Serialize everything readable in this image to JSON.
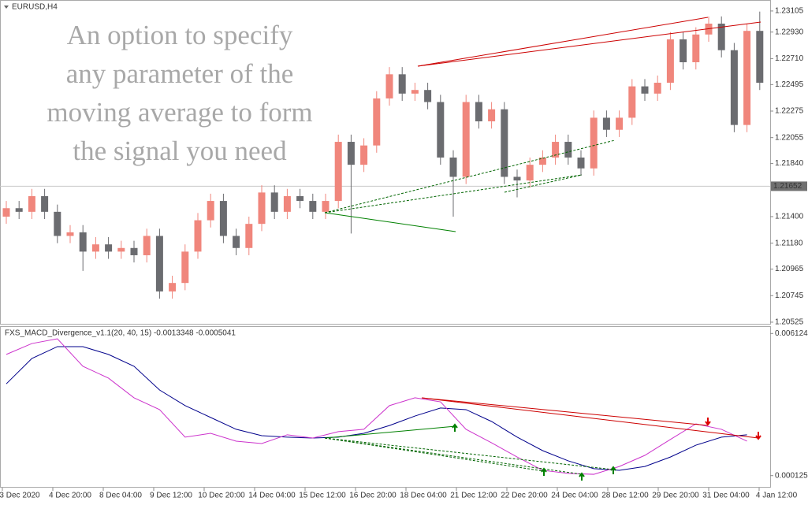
{
  "window": {
    "symbol": "EURUSD,H4"
  },
  "overlay_text": [
    "An option to specify",
    "any parameter of the",
    "moving average to form",
    "the signal you need"
  ],
  "price_chart": {
    "type": "candlestick",
    "open": [
      1.214,
      1.2147,
      1.2144,
      1.2157,
      1.2144,
      1.2124,
      1.2127,
      1.2111,
      1.2117,
      1.2111,
      1.2114,
      1.2108,
      1.2124,
      1.2078,
      1.2085,
      1.2111,
      1.2137,
      1.2153,
      1.2124,
      1.2114,
      1.2134,
      1.216,
      1.2144,
      1.2157,
      1.2153,
      1.2144,
      1.2153,
      1.2202,
      1.2183,
      1.2199,
      1.2238,
      1.2258,
      1.2242,
      1.2245,
      1.2235,
      1.2189,
      1.2173,
      1.2235,
      1.2219,
      1.2229,
      1.2173,
      1.217,
      1.2183,
      1.2189,
      1.2202,
      1.2189,
      1.218,
      1.2222,
      1.2212,
      1.2222,
      1.2248,
      1.2242,
      1.2251,
      1.2287,
      1.2268,
      1.2291,
      1.23,
      1.2278,
      1.2216,
      1.2294
    ],
    "high": [
      1.2153,
      1.2153,
      1.2163,
      1.2163,
      1.215,
      1.2133,
      1.2133,
      1.2123,
      1.2123,
      1.212,
      1.212,
      1.213,
      1.213,
      1.2091,
      1.2117,
      1.2143,
      1.2159,
      1.2159,
      1.213,
      1.214,
      1.2166,
      1.2166,
      1.2163,
      1.2163,
      1.2159,
      1.2159,
      1.2208,
      1.2208,
      1.2205,
      1.2244,
      1.2264,
      1.2264,
      1.2251,
      1.2251,
      1.2241,
      1.2195,
      1.2241,
      1.2241,
      1.2235,
      1.2235,
      1.2179,
      1.2189,
      1.2195,
      1.2208,
      1.2208,
      1.2195,
      1.2228,
      1.2228,
      1.2228,
      1.2254,
      1.2254,
      1.2257,
      1.2293,
      1.2293,
      1.2297,
      1.2306,
      1.2306,
      1.2284,
      1.23,
      1.231
    ],
    "low": [
      1.2134,
      1.2138,
      1.2138,
      1.2138,
      1.2118,
      1.2118,
      1.2095,
      1.2105,
      1.2105,
      1.2105,
      1.2102,
      1.2102,
      1.2072,
      1.2072,
      1.2079,
      1.2105,
      1.2131,
      1.2118,
      1.2108,
      1.2108,
      1.2128,
      1.2138,
      1.2138,
      1.2147,
      1.2138,
      1.2138,
      1.2147,
      1.2126,
      1.2177,
      1.2193,
      1.2232,
      1.2236,
      1.2236,
      1.2229,
      1.2183,
      1.214,
      1.2167,
      1.2213,
      1.2213,
      1.2167,
      1.2156,
      1.2164,
      1.2177,
      1.2183,
      1.2183,
      1.2174,
      1.2174,
      1.2206,
      1.2206,
      1.2216,
      1.2236,
      1.2236,
      1.2245,
      1.2262,
      1.2262,
      1.2285,
      1.2272,
      1.221,
      1.221,
      1.2245
    ],
    "close": [
      1.2147,
      1.2144,
      1.2157,
      1.2144,
      1.2124,
      1.2127,
      1.2111,
      1.2117,
      1.2111,
      1.2114,
      1.2108,
      1.2124,
      1.2078,
      1.2085,
      1.2111,
      1.2137,
      1.2153,
      1.2124,
      1.2114,
      1.2134,
      1.216,
      1.2144,
      1.2157,
      1.2153,
      1.2144,
      1.2153,
      1.2202,
      1.2183,
      1.2199,
      1.2238,
      1.2258,
      1.2242,
      1.2245,
      1.2235,
      1.2189,
      1.2173,
      1.2235,
      1.2219,
      1.2229,
      1.2173,
      1.217,
      1.2183,
      1.2189,
      1.2202,
      1.2189,
      1.218,
      1.2222,
      1.2212,
      1.2222,
      1.2248,
      1.2242,
      1.2251,
      1.2287,
      1.2268,
      1.2291,
      1.23,
      1.2278,
      1.2216,
      1.2294,
      1.2251
    ],
    "bull_color": "#f0867c",
    "bear_color": "#6b6c70",
    "ylim": [
      1.20505,
      1.23196
    ],
    "yticks": [
      1.23105,
      {
        "value": 1.2293,
        "label": "1.22930"
      },
      {
        "value": 1.2271,
        "label": "1.22710"
      },
      1.22495,
      1.22275,
      1.22055,
      {
        "value": 1.2184,
        "label": "1.21840"
      },
      {
        "value": 1.214,
        "label": "1.21400"
      },
      {
        "value": 1.2118,
        "label": "1.21180"
      },
      1.20965,
      1.20745,
      1.20525
    ],
    "current_price": 1.21652
  },
  "indicator": {
    "type": "line",
    "title": "FXS_MACD_Divergence_v1.1(20, 40, 15) -0.0013348 -0.0005041",
    "series": [
      {
        "color": "#00008b",
        "values": [
          0.004,
          0.00507,
          0.00557,
          0.00557,
          0.00524,
          0.00474,
          0.00374,
          0.00308,
          0.00258,
          0.00208,
          0.00181,
          0.00175,
          0.00171,
          0.00175,
          0.00191,
          0.00224,
          0.00264,
          0.00298,
          0.00291,
          0.00241,
          0.00175,
          0.00118,
          0.00075,
          0.00042,
          0.00035,
          0.00051,
          0.00091,
          0.00141,
          0.00175,
          0.00185
        ]
      },
      {
        "color": "#cc33cc",
        "values": [
          0.00524,
          0.0057,
          0.0059,
          0.00474,
          0.00424,
          0.00341,
          0.00291,
          0.00175,
          0.00191,
          0.00158,
          0.00148,
          0.00185,
          0.00171,
          0.00198,
          0.00208,
          0.00308,
          0.00341,
          0.00324,
          0.00208,
          0.00151,
          0.00091,
          0.00035,
          0.00022,
          0.00018,
          0.00051,
          0.00098,
          0.00165,
          0.00231,
          0.00208,
          0.00158
        ]
      }
    ],
    "ylim": [
      -0.00035,
      0.0064
    ],
    "yticks": [
      0.0061244,
      0.000125
    ]
  },
  "x_axis_labels": [
    "3 Dec 2020",
    "4 Dec 20:00",
    "8 Dec 04:00",
    "9 Dec 12:00",
    "10 Dec 20:00",
    "14 Dec 04:00",
    "15 Dec 12:00",
    "16 Dec 20:00",
    "18 Dec 04:00",
    "21 Dec 12:00",
    "22 Dec 20:00",
    "24 Dec 04:00",
    "28 Dec 12:00",
    "29 Dec 20:00",
    "31 Dec 04:00",
    "4 Jan 12:00"
  ]
}
